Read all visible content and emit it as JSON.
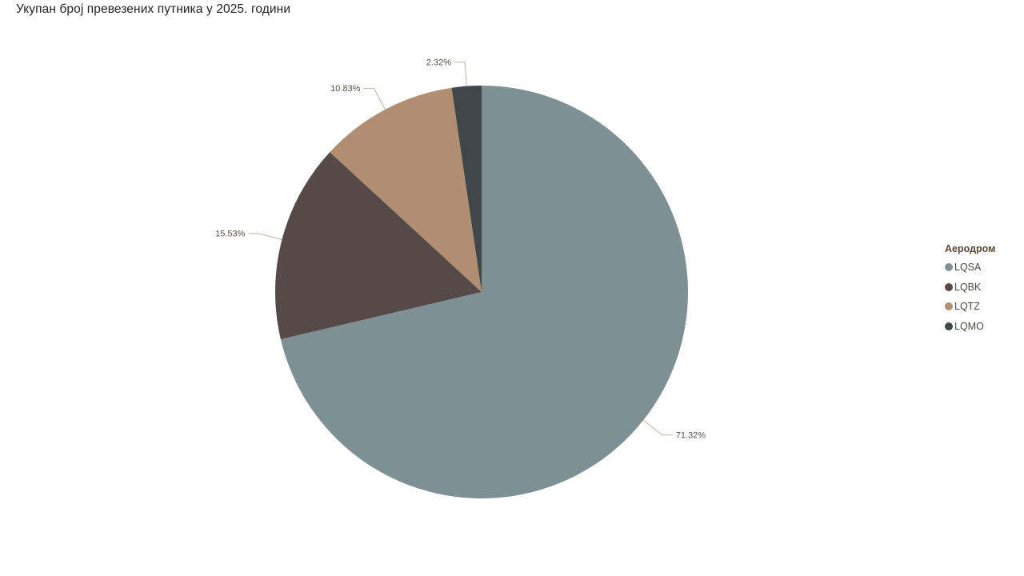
{
  "title": "Укупан број превезених путника у 2025. години",
  "legend": {
    "title": "Аеродром",
    "position": "right"
  },
  "chart_data": {
    "type": "pie",
    "title": "Укупан број превезених путника у 2025. години",
    "legend_title": "Аеродром",
    "legend_position": "right",
    "categories": [
      "LQSA",
      "LQBK",
      "LQTZ",
      "LQMO"
    ],
    "values_percent": [
      71.32,
      15.53,
      10.83,
      2.32
    ],
    "labels": [
      "71.32%",
      "15.53%",
      "10.83%",
      "2.32%"
    ],
    "colors": [
      "#7F9094",
      "#554A48",
      "#B18E72",
      "#3F474A"
    ],
    "start_angle_deg": 0,
    "direction": "clockwise",
    "label_style": {
      "text_color": "#55524D",
      "leader_line_color": "#BDB3A7"
    }
  },
  "styles": {
    "background": "#FFFFFF",
    "title_color": "#252423",
    "legend_title_color": "#5C4A38",
    "legend_text_color": "#4E4A45"
  }
}
